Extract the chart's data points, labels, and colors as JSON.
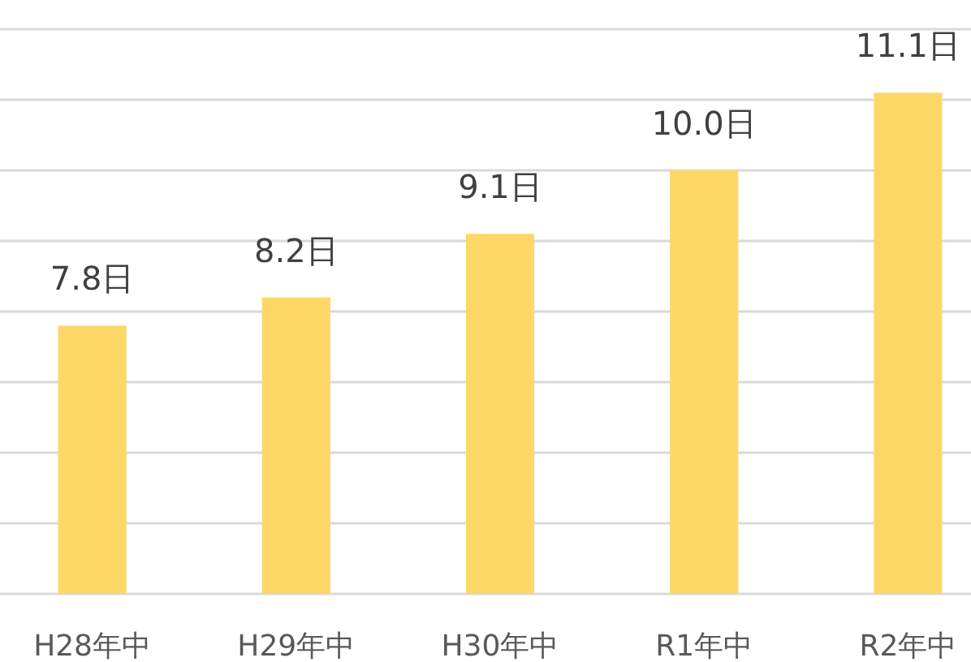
{
  "chart_data": {
    "type": "bar",
    "categories": [
      "H28年中",
      "H29年中",
      "H30年中",
      "R1年中",
      "R2年中"
    ],
    "values": [
      7.8,
      8.2,
      9.1,
      10.0,
      11.1
    ],
    "value_labels": [
      "7.8日",
      "8.2日",
      "9.1日",
      "10.0日",
      "11.1日"
    ],
    "color": "#fdd866",
    "ylim": [
      4,
      12
    ],
    "yticks": [
      {
        "value": 4,
        "label": null
      },
      {
        "value": 5,
        "label": null
      },
      {
        "value": 6,
        "label": null
      },
      {
        "value": 7,
        "label": null
      },
      {
        "value": 8,
        "label": null
      },
      {
        "value": 9,
        "label": null
      },
      {
        "value": 10,
        "label": null
      },
      {
        "value": 11,
        "label": null
      },
      {
        "value": 12,
        "label": null
      }
    ],
    "grid": "y",
    "tick_labels": "x"
  }
}
